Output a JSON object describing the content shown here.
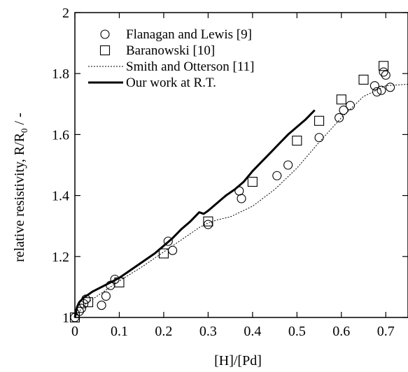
{
  "chart_data": {
    "type": "scatter",
    "xlabel": "[H]/[Pd]",
    "ylabel": {
      "main": "relative resistivity,  R/R",
      "sub": "0",
      "unit": " / -"
    },
    "xlim": [
      0,
      0.75
    ],
    "ylim": [
      1.0,
      2.0
    ],
    "x_ticks": [
      0,
      0.1,
      0.2,
      0.3,
      0.4,
      0.5,
      0.6,
      0.7
    ],
    "x_tick_labels": [
      "0",
      "0.1",
      "0.2",
      "0.3",
      "0.4",
      "0.5",
      "0.6",
      "0.7"
    ],
    "y_ticks": [
      1.0,
      1.2,
      1.4,
      1.6,
      1.8,
      2.0
    ],
    "y_tick_labels": [
      "1",
      "1.2",
      "1.4",
      "1.6",
      "1.8",
      "2"
    ],
    "grid": false,
    "legend_position": "top-left",
    "series": [
      {
        "name": "Flanagan and Lewis [9]",
        "marker": "circle",
        "x": [
          0.0,
          0.01,
          0.015,
          0.02,
          0.025,
          0.06,
          0.07,
          0.08,
          0.09,
          0.21,
          0.22,
          0.3,
          0.37,
          0.375,
          0.455,
          0.48,
          0.55,
          0.595,
          0.605,
          0.62,
          0.675,
          0.68,
          0.69,
          0.695,
          0.7,
          0.71
        ],
        "y": [
          1.0,
          1.02,
          1.03,
          1.045,
          1.06,
          1.04,
          1.07,
          1.105,
          1.125,
          1.25,
          1.22,
          1.305,
          1.415,
          1.39,
          1.465,
          1.5,
          1.59,
          1.655,
          1.68,
          1.695,
          1.76,
          1.74,
          1.745,
          1.805,
          1.795,
          1.755
        ]
      },
      {
        "name": "Baranowski [10]",
        "marker": "square",
        "x": [
          0.0,
          0.03,
          0.1,
          0.2,
          0.3,
          0.4,
          0.5,
          0.55,
          0.6,
          0.65,
          0.695
        ],
        "y": [
          1.0,
          1.05,
          1.115,
          1.21,
          1.315,
          1.445,
          1.58,
          1.645,
          1.715,
          1.78,
          1.825
        ]
      },
      {
        "name": "Smith and Otterson [11]",
        "style": "dotted",
        "x": [
          0.0,
          0.02,
          0.05,
          0.1,
          0.15,
          0.2,
          0.25,
          0.28,
          0.3,
          0.32,
          0.35,
          0.4,
          0.45,
          0.5,
          0.55,
          0.6,
          0.65,
          0.7,
          0.75
        ],
        "y": [
          1.0,
          1.04,
          1.07,
          1.12,
          1.165,
          1.215,
          1.265,
          1.295,
          1.31,
          1.32,
          1.33,
          1.365,
          1.42,
          1.49,
          1.575,
          1.655,
          1.725,
          1.76,
          1.765
        ]
      },
      {
        "name": "Our work at R.T.",
        "style": "solid-thick",
        "x": [
          0.0,
          0.005,
          0.01,
          0.02,
          0.04,
          0.06,
          0.08,
          0.1,
          0.12,
          0.15,
          0.18,
          0.2,
          0.22,
          0.24,
          0.26,
          0.27,
          0.28,
          0.29,
          0.3,
          0.32,
          0.34,
          0.36,
          0.38,
          0.4,
          0.42,
          0.44,
          0.46,
          0.48,
          0.5,
          0.52,
          0.54
        ],
        "y": [
          1.0,
          1.035,
          1.05,
          1.065,
          1.085,
          1.1,
          1.115,
          1.13,
          1.15,
          1.18,
          1.21,
          1.235,
          1.26,
          1.29,
          1.315,
          1.33,
          1.345,
          1.34,
          1.35,
          1.375,
          1.4,
          1.42,
          1.445,
          1.48,
          1.51,
          1.54,
          1.57,
          1.6,
          1.625,
          1.65,
          1.68
        ]
      }
    ]
  }
}
